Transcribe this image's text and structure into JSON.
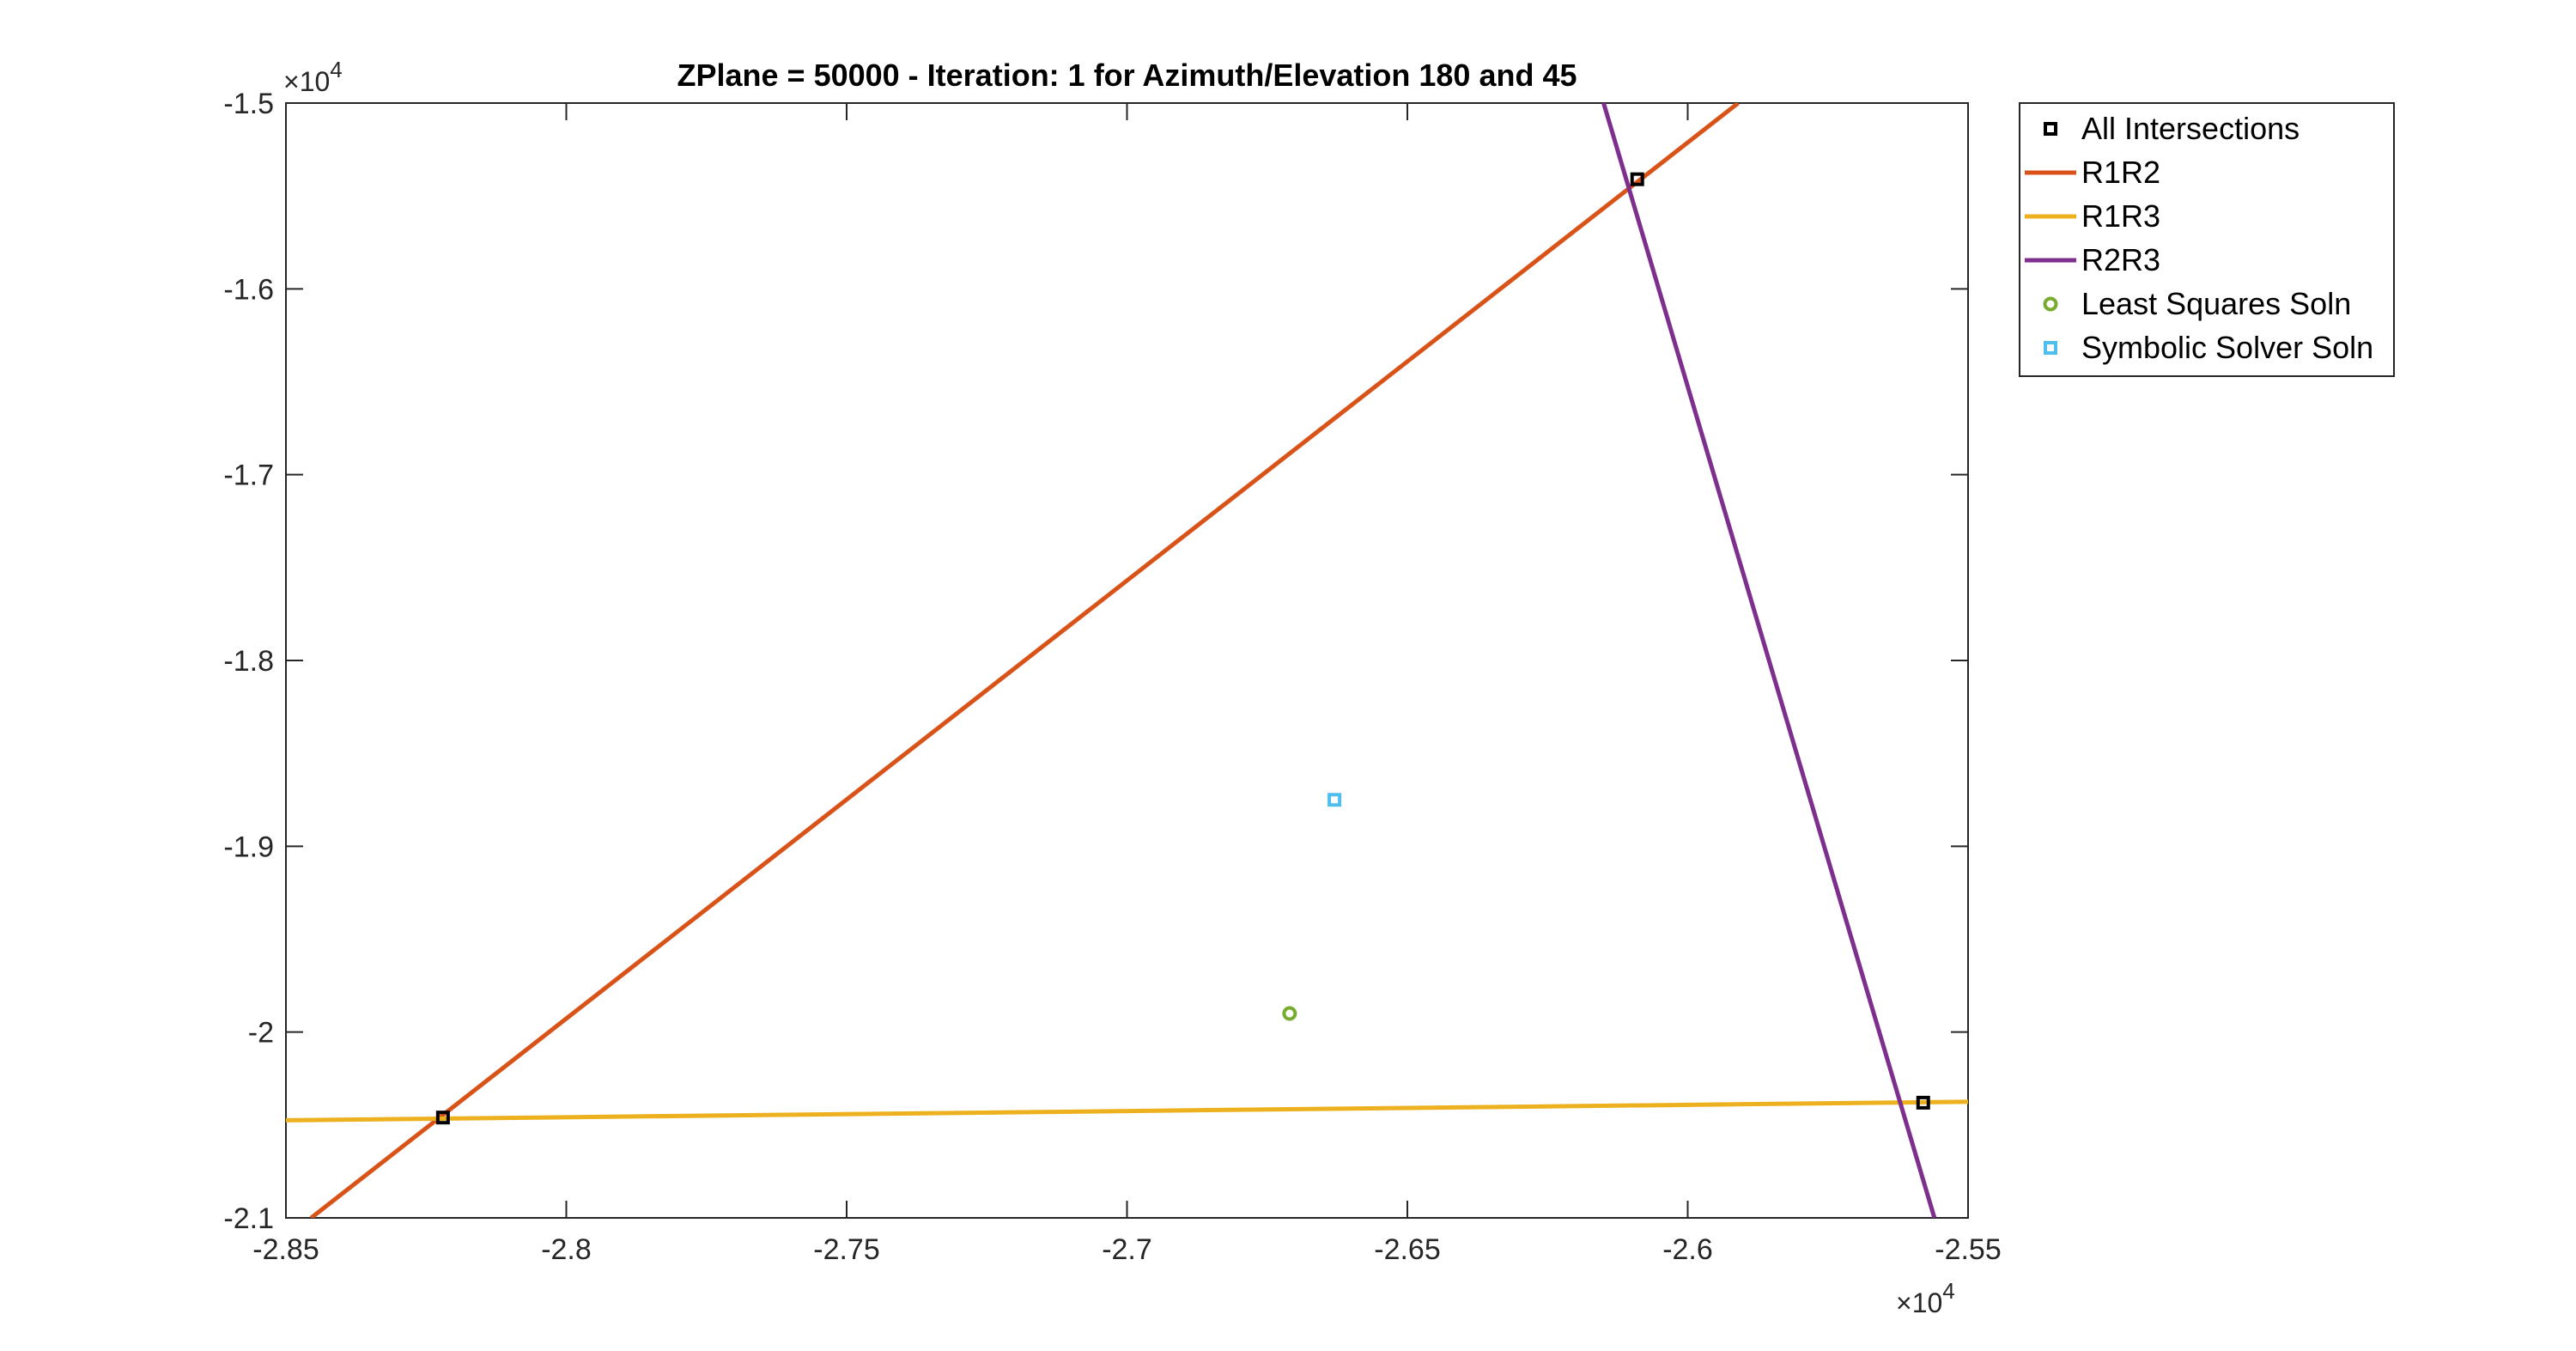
{
  "chart_data": {
    "type": "line",
    "title": "ZPlane = 50000 - Iteration: 1 for Azimuth/Elevation 180 and 45",
    "xlabel": "",
    "ylabel": "",
    "xlim": [
      -28500,
      -25500
    ],
    "ylim": [
      -21000,
      -15000
    ],
    "x_ticks": [
      -28500,
      -28000,
      -27500,
      -27000,
      -26500,
      -26000,
      -25500
    ],
    "x_tick_labels": [
      "-2.85",
      "-2.8",
      "-2.75",
      "-2.7",
      "-2.65",
      "-2.6",
      "-2.55"
    ],
    "y_ticks": [
      -15000,
      -16000,
      -17000,
      -18000,
      -19000,
      -20000,
      -21000
    ],
    "y_tick_labels": [
      "-1.5",
      "-1.6",
      "-1.7",
      "-1.8",
      "-1.9",
      "-2",
      "-2.1"
    ],
    "x_exponent": {
      "base": "×10",
      "power": "4"
    },
    "y_exponent": {
      "base": "×10",
      "power": "4"
    },
    "grid": false,
    "legend_position": "outside-right-top",
    "series": [
      {
        "name": "All Intersections",
        "kind": "marker-square",
        "color": "#000000",
        "x": [
          -28220,
          -26090,
          -25580
        ],
        "y": [
          -20460,
          -15410,
          -20380
        ]
      },
      {
        "name": "R1R2",
        "kind": "line",
        "color": "#D95319",
        "x": [
          -28455,
          -25910
        ],
        "y": [
          -21000,
          -15000
        ]
      },
      {
        "name": "R1R3",
        "kind": "line",
        "color": "#EDB120",
        "x": [
          -28500,
          -25500
        ],
        "y": [
          -20475,
          -20375
        ]
      },
      {
        "name": "R2R3",
        "kind": "line",
        "color": "#7E2F8E",
        "x": [
          -26150,
          -25560
        ],
        "y": [
          -15000,
          -21000
        ]
      },
      {
        "name": "Least Squares Soln",
        "kind": "marker-circle",
        "color": "#77AC30",
        "x": [
          -26710
        ],
        "y": [
          -19900
        ]
      },
      {
        "name": "Symbolic Solver Soln",
        "kind": "marker-square",
        "color": "#4DBEEE",
        "x": [
          -26630
        ],
        "y": [
          -18750
        ]
      }
    ]
  }
}
